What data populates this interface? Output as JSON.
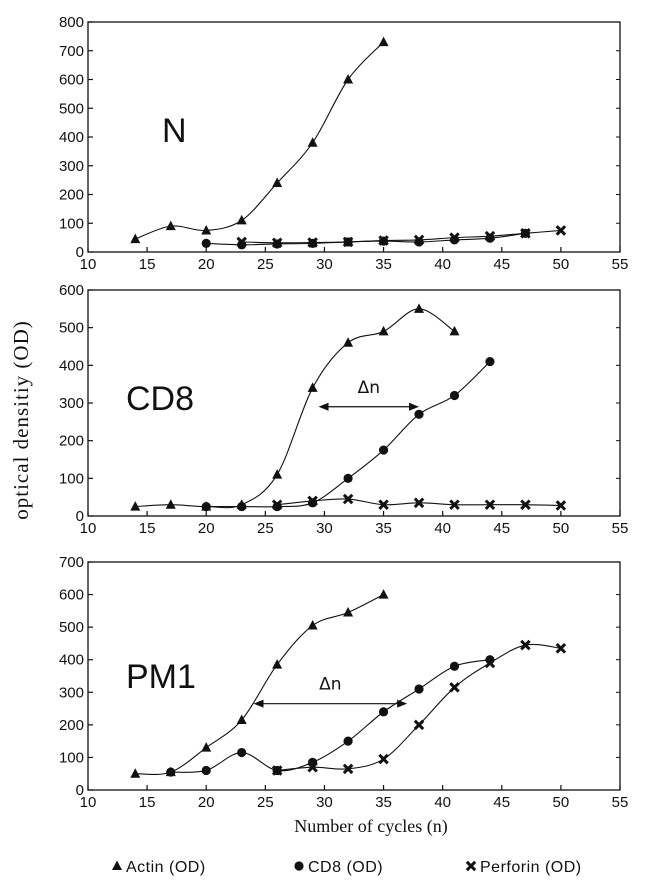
{
  "chart_data": {
    "type": "line",
    "xlabel": "Number of cycles (n)",
    "ylabel": "optical densitiy (OD)",
    "legend": {
      "placement": "bottom",
      "entries": [
        {
          "series": "actin",
          "label": "Actin  (OD)",
          "marker": "triangle"
        },
        {
          "series": "cd8",
          "label": "CD8  (OD)",
          "marker": "circle"
        },
        {
          "series": "perforin",
          "label": "Perforin  (OD)",
          "marker": "cross"
        }
      ]
    },
    "x_ticks": [
      10,
      15,
      20,
      25,
      30,
      35,
      40,
      45,
      50,
      55
    ],
    "xlim": [
      10,
      55
    ],
    "panels": [
      {
        "label": "N",
        "ylim": [
          0,
          800
        ],
        "y_ticks": [
          0,
          100,
          200,
          300,
          400,
          500,
          600,
          700,
          800
        ],
        "series": [
          {
            "key": "actin",
            "x": [
              14,
              17,
              20,
              23,
              26,
              29,
              32,
              35
            ],
            "y": [
              45,
              90,
              75,
              110,
              240,
              380,
              600,
              730
            ]
          },
          {
            "key": "cd8",
            "x": [
              20,
              23,
              26,
              29,
              32,
              35,
              38,
              41,
              44,
              47
            ],
            "y": [
              30,
              25,
              28,
              30,
              35,
              38,
              35,
              42,
              48,
              65
            ]
          },
          {
            "key": "perforin",
            "x": [
              23,
              26,
              29,
              32,
              35,
              38,
              41,
              44,
              47,
              50
            ],
            "y": [
              35,
              32,
              33,
              35,
              40,
              42,
              50,
              55,
              65,
              75
            ]
          }
        ],
        "annotations": []
      },
      {
        "label": "CD8",
        "ylim": [
          0,
          600
        ],
        "y_ticks": [
          0,
          100,
          200,
          300,
          400,
          500,
          600
        ],
        "series": [
          {
            "key": "actin",
            "x": [
              14,
              17,
              20,
              23,
              26,
              29,
              32,
              35,
              38,
              41
            ],
            "y": [
              25,
              30,
              25,
              30,
              110,
              340,
              460,
              490,
              550,
              490
            ]
          },
          {
            "key": "cd8",
            "x": [
              20,
              23,
              26,
              29,
              32,
              35,
              38,
              41,
              44
            ],
            "y": [
              25,
              25,
              25,
              35,
              100,
              175,
              270,
              320,
              410
            ]
          },
          {
            "key": "perforin",
            "x": [
              26,
              29,
              32,
              35,
              38,
              41,
              44,
              47,
              50
            ],
            "y": [
              30,
              40,
              45,
              30,
              35,
              30,
              30,
              30,
              28
            ]
          }
        ],
        "annotations": [
          {
            "text": "Δn",
            "from_x": 29.5,
            "to_x": 38,
            "y": 290
          }
        ]
      },
      {
        "label": "PM1",
        "ylim": [
          0,
          700
        ],
        "y_ticks": [
          0,
          100,
          200,
          300,
          400,
          500,
          600,
          700
        ],
        "series": [
          {
            "key": "actin",
            "x": [
              14,
              17,
              20,
              23,
              26,
              29,
              32,
              35
            ],
            "y": [
              50,
              55,
              130,
              215,
              385,
              505,
              545,
              600
            ]
          },
          {
            "key": "cd8",
            "x": [
              17,
              20,
              23,
              26,
              29,
              32,
              35,
              38,
              41,
              44
            ],
            "y": [
              55,
              60,
              115,
              60,
              85,
              150,
              240,
              310,
              380,
              400
            ]
          },
          {
            "key": "perforin",
            "x": [
              26,
              29,
              32,
              35,
              38,
              41,
              44,
              47,
              50
            ],
            "y": [
              60,
              70,
              65,
              95,
              200,
              315,
              390,
              445,
              435
            ]
          }
        ],
        "annotations": [
          {
            "text": "Δn",
            "from_x": 24,
            "to_x": 37,
            "y": 265
          }
        ]
      }
    ]
  }
}
